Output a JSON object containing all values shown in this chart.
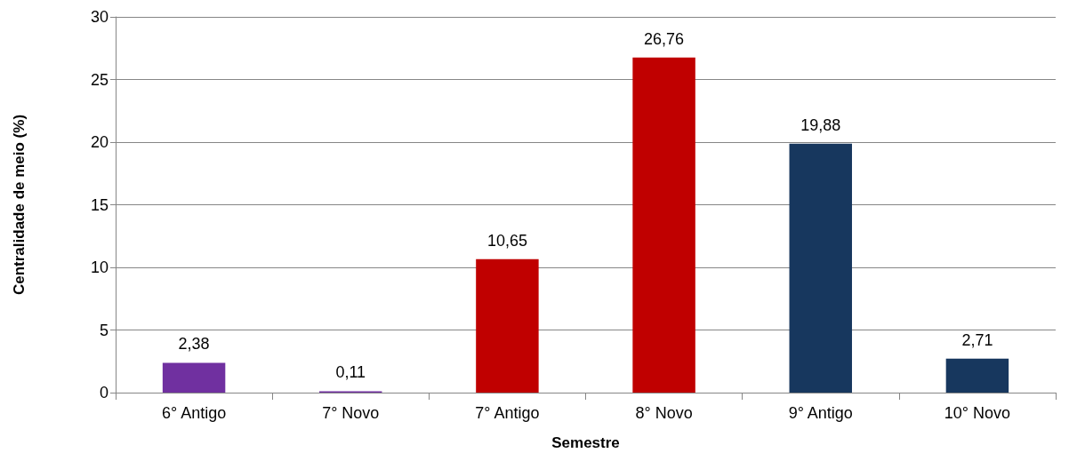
{
  "chart_data": {
    "type": "bar",
    "xlabel": "Semestre",
    "ylabel": "Centralidade de meio (%)",
    "categories": [
      "6° Antigo",
      "7° Novo",
      "7° Antigo",
      "8° Novo",
      "9° Antigo",
      "10° Novo"
    ],
    "values": [
      2.38,
      0.11,
      10.65,
      26.76,
      19.88,
      2.71
    ],
    "value_labels": [
      "2,38",
      "0,11",
      "10,65",
      "26,76",
      "19,88",
      "2,71"
    ],
    "colors": [
      "#7030a0",
      "#7030a0",
      "#c00000",
      "#c00000",
      "#17375e",
      "#17375e"
    ],
    "ylim": [
      0,
      30
    ],
    "yticks": [
      0,
      5,
      10,
      15,
      20,
      25,
      30
    ],
    "grid": "y"
  }
}
